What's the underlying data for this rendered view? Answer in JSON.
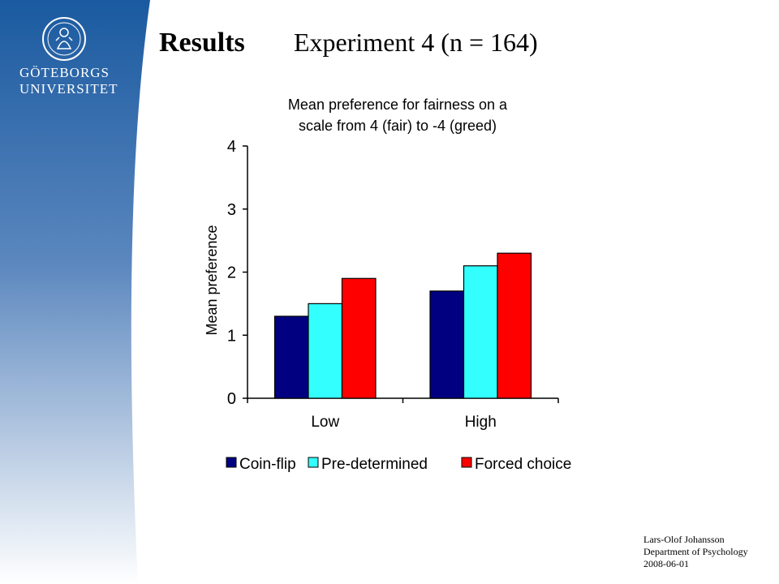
{
  "logo": {
    "line1": "GÖTEBORGS",
    "line2": "UNIVERSITET"
  },
  "slide": {
    "title": "Results",
    "subtitle": "Experiment 4 (n = 164)"
  },
  "chart_data": {
    "type": "bar",
    "title_lines": [
      "Mean preference for fairness on a",
      "scale from 4 (fair) to -4 (greed)"
    ],
    "xlabel": "",
    "ylabel": "Mean preference",
    "categories": [
      "Low",
      "High"
    ],
    "ylim": [
      0,
      4
    ],
    "yticks": [
      0,
      1,
      2,
      3,
      4
    ],
    "grid": false,
    "legend_position": "bottom",
    "series": [
      {
        "name": "Coin-flip",
        "color": "#000080",
        "values": [
          1.3,
          1.7
        ]
      },
      {
        "name": "Pre-determined",
        "color": "#33ffff",
        "values": [
          1.5,
          2.1
        ]
      },
      {
        "name": "Forced choice",
        "color": "#ff0000",
        "values": [
          1.9,
          2.3
        ]
      }
    ]
  },
  "footer": {
    "author": "Lars-Olof Johansson",
    "department": "Department of Psychology",
    "date": "2008-06-01"
  },
  "colors": {
    "band_top": "#1a5aa0",
    "band_bottom": "#ffffff"
  }
}
